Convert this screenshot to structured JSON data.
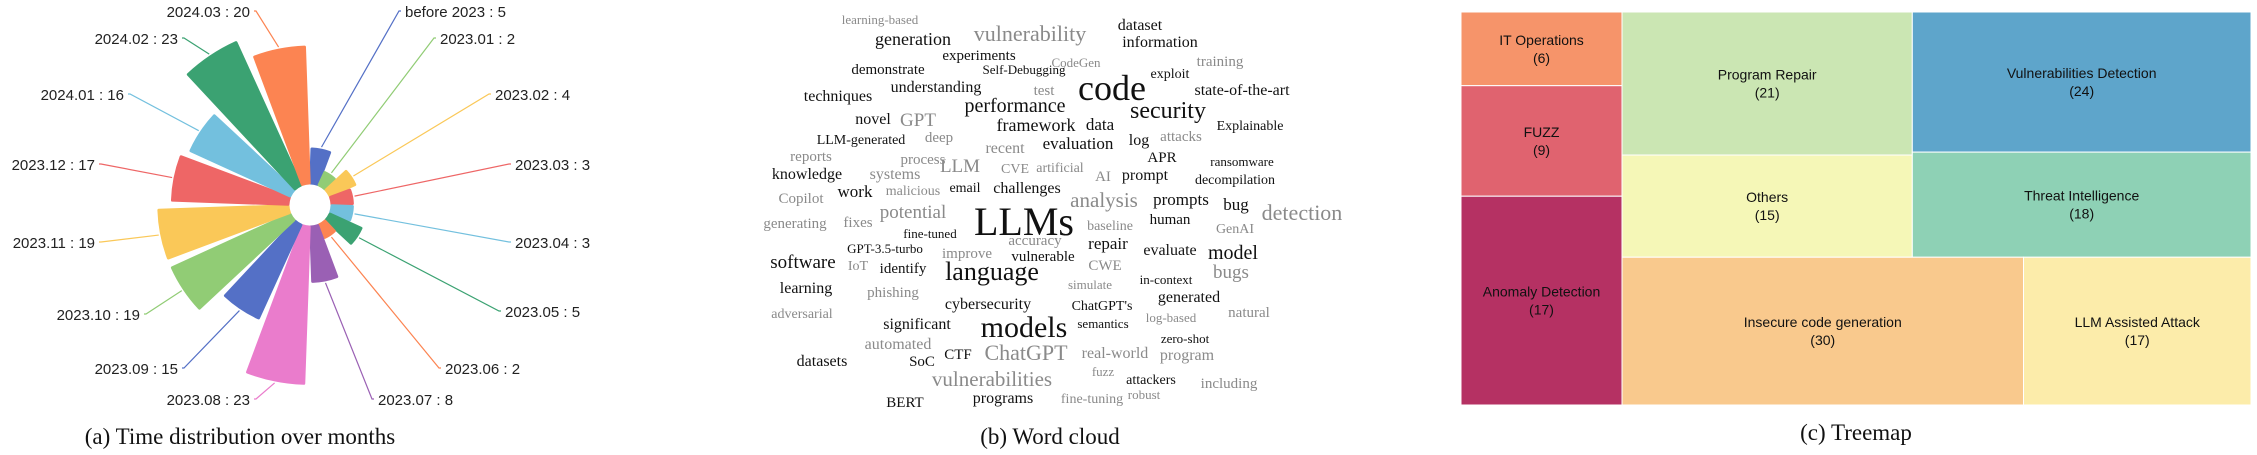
{
  "captions": {
    "a": "(a) Time distribution over months",
    "b": "(b) Word cloud",
    "c": "(c) Treemap"
  },
  "chart_data": [
    {
      "type": "polar-bar",
      "title": "",
      "categories": [
        "before 2023",
        "2023.01",
        "2023.02",
        "2023.03",
        "2023.04",
        "2023.05",
        "2023.06",
        "2023.07",
        "2023.08",
        "2023.09",
        "2023.10",
        "2023.11",
        "2023.12",
        "2024.01",
        "2024.02",
        "2024.03"
      ],
      "values": [
        5,
        2,
        4,
        3,
        3,
        5,
        2,
        8,
        23,
        15,
        19,
        19,
        17,
        16,
        23,
        20
      ],
      "labels": [
        "before 2023 : 5",
        "2023.01 : 2",
        "2023.02 : 4",
        "2023.03 : 3",
        "2023.04 : 3",
        "2023.05 : 5",
        "2023.06 : 2",
        "2023.07 : 8",
        "2023.08 : 23",
        "2023.09 : 15",
        "2023.10 : 19",
        "2023.11 : 19",
        "2023.12 : 17",
        "2024.01 : 16",
        "2024.02 : 23",
        "2024.03 : 20"
      ],
      "colors": [
        "#5470c6",
        "#91cc75",
        "#fac858",
        "#ee6666",
        "#73c0de",
        "#3ba272",
        "#fc8452",
        "#9a60b4",
        "#ea7ccc",
        "#5470c6",
        "#91cc75",
        "#fac858",
        "#ee6666",
        "#73c0de",
        "#3ba272",
        "#fc8452"
      ]
    },
    {
      "type": "wordcloud",
      "words": [
        {
          "text": "learning-based",
          "x": 140,
          "y": 24,
          "s": 13,
          "g": 1
        },
        {
          "text": "vulnerability",
          "x": 290,
          "y": 41,
          "s": 22,
          "g": 1
        },
        {
          "text": "dataset",
          "x": 400,
          "y": 30,
          "s": 16,
          "g": 0
        },
        {
          "text": "generation",
          "x": 173,
          "y": 45,
          "s": 18,
          "g": 0
        },
        {
          "text": "information",
          "x": 420,
          "y": 47,
          "s": 16,
          "g": 0
        },
        {
          "text": "experiments",
          "x": 239,
          "y": 60,
          "s": 15,
          "g": 0
        },
        {
          "text": "CodeGen",
          "x": 336,
          "y": 67,
          "s": 13,
          "g": 1
        },
        {
          "text": "training",
          "x": 480,
          "y": 66,
          "s": 15,
          "g": 1
        },
        {
          "text": "demonstrate",
          "x": 148,
          "y": 74,
          "s": 15,
          "g": 0
        },
        {
          "text": "Self-Debugging",
          "x": 284,
          "y": 74,
          "s": 13,
          "g": 0
        },
        {
          "text": "exploit",
          "x": 430,
          "y": 78,
          "s": 14,
          "g": 0
        },
        {
          "text": "techniques",
          "x": 98,
          "y": 101,
          "s": 16,
          "g": 0
        },
        {
          "text": "understanding",
          "x": 196,
          "y": 92,
          "s": 16,
          "g": 0
        },
        {
          "text": "test",
          "x": 304,
          "y": 95,
          "s": 15,
          "g": 1
        },
        {
          "text": "code",
          "x": 372,
          "y": 100,
          "s": 36,
          "g": 0
        },
        {
          "text": "state-of-the-art",
          "x": 502,
          "y": 95,
          "s": 16,
          "g": 0
        },
        {
          "text": "novel",
          "x": 133,
          "y": 124,
          "s": 16,
          "g": 0
        },
        {
          "text": "GPT",
          "x": 178,
          "y": 126,
          "s": 19,
          "g": 1
        },
        {
          "text": "performance",
          "x": 275,
          "y": 112,
          "s": 20,
          "g": 0
        },
        {
          "text": "security",
          "x": 428,
          "y": 118,
          "s": 24,
          "g": 0
        },
        {
          "text": "Explainable",
          "x": 510,
          "y": 130,
          "s": 14,
          "g": 0
        },
        {
          "text": "LLM-generated",
          "x": 121,
          "y": 144,
          "s": 14,
          "g": 0
        },
        {
          "text": "deep",
          "x": 199,
          "y": 142,
          "s": 15,
          "g": 1
        },
        {
          "text": "framework",
          "x": 296,
          "y": 131,
          "s": 18,
          "g": 0
        },
        {
          "text": "data",
          "x": 360,
          "y": 130,
          "s": 17,
          "g": 0
        },
        {
          "text": "attacks",
          "x": 441,
          "y": 141,
          "s": 15,
          "g": 1
        },
        {
          "text": "reports",
          "x": 71,
          "y": 161,
          "s": 15,
          "g": 1
        },
        {
          "text": "process",
          "x": 183,
          "y": 164,
          "s": 15,
          "g": 1
        },
        {
          "text": "recent",
          "x": 265,
          "y": 153,
          "s": 16,
          "g": 1
        },
        {
          "text": "evaluation",
          "x": 338,
          "y": 149,
          "s": 17,
          "g": 0
        },
        {
          "text": "log",
          "x": 399,
          "y": 145,
          "s": 16,
          "g": 0
        },
        {
          "text": "APR",
          "x": 422,
          "y": 162,
          "s": 15,
          "g": 0
        },
        {
          "text": "ransomware",
          "x": 502,
          "y": 166,
          "s": 13,
          "g": 0
        },
        {
          "text": "knowledge",
          "x": 67,
          "y": 179,
          "s": 16,
          "g": 0
        },
        {
          "text": "systems",
          "x": 155,
          "y": 179,
          "s": 16,
          "g": 1
        },
        {
          "text": "LLM",
          "x": 220,
          "y": 172,
          "s": 19,
          "g": 1
        },
        {
          "text": "CVE",
          "x": 275,
          "y": 173,
          "s": 14,
          "g": 1
        },
        {
          "text": "artificial",
          "x": 320,
          "y": 172,
          "s": 14,
          "g": 1
        },
        {
          "text": "AI",
          "x": 363,
          "y": 181,
          "s": 15,
          "g": 1
        },
        {
          "text": "prompt",
          "x": 405,
          "y": 180,
          "s": 16,
          "g": 0
        },
        {
          "text": "decompilation",
          "x": 495,
          "y": 184,
          "s": 14,
          "g": 0
        },
        {
          "text": "Copilot",
          "x": 61,
          "y": 203,
          "s": 15,
          "g": 1
        },
        {
          "text": "work",
          "x": 115,
          "y": 197,
          "s": 17,
          "g": 0
        },
        {
          "text": "malicious",
          "x": 173,
          "y": 195,
          "s": 14,
          "g": 1
        },
        {
          "text": "email",
          "x": 225,
          "y": 192,
          "s": 14,
          "g": 0
        },
        {
          "text": "challenges",
          "x": 287,
          "y": 193,
          "s": 16,
          "g": 0
        },
        {
          "text": "analysis",
          "x": 364,
          "y": 207,
          "s": 21,
          "g": 1
        },
        {
          "text": "prompts",
          "x": 441,
          "y": 205,
          "s": 17,
          "g": 0
        },
        {
          "text": "bug",
          "x": 496,
          "y": 210,
          "s": 17,
          "g": 0
        },
        {
          "text": "potential",
          "x": 173,
          "y": 218,
          "s": 19,
          "g": 1
        },
        {
          "text": "LLMs",
          "x": 284,
          "y": 235,
          "s": 40,
          "g": 0
        },
        {
          "text": "detection",
          "x": 562,
          "y": 220,
          "s": 22,
          "g": 1
        },
        {
          "text": "generating",
          "x": 55,
          "y": 228,
          "s": 15,
          "g": 1
        },
        {
          "text": "fixes",
          "x": 118,
          "y": 227,
          "s": 15,
          "g": 1
        },
        {
          "text": "baseline",
          "x": 370,
          "y": 230,
          "s": 14,
          "g": 1
        },
        {
          "text": "human",
          "x": 430,
          "y": 224,
          "s": 15,
          "g": 0
        },
        {
          "text": "GenAI",
          "x": 495,
          "y": 233,
          "s": 14,
          "g": 1
        },
        {
          "text": "fine-tuned",
          "x": 190,
          "y": 238,
          "s": 13,
          "g": 0
        },
        {
          "text": "accuracy",
          "x": 295,
          "y": 245,
          "s": 15,
          "g": 1
        },
        {
          "text": "repair",
          "x": 368,
          "y": 249,
          "s": 17,
          "g": 0
        },
        {
          "text": "GPT-3.5-turbo",
          "x": 145,
          "y": 253,
          "s": 13,
          "g": 0
        },
        {
          "text": "improve",
          "x": 227,
          "y": 258,
          "s": 15,
          "g": 1
        },
        {
          "text": "vulnerable",
          "x": 303,
          "y": 261,
          "s": 15,
          "g": 0
        },
        {
          "text": "evaluate",
          "x": 430,
          "y": 255,
          "s": 16,
          "g": 0
        },
        {
          "text": "model",
          "x": 493,
          "y": 259,
          "s": 20,
          "g": 0
        },
        {
          "text": "software",
          "x": 63,
          "y": 268,
          "s": 19,
          "g": 0
        },
        {
          "text": "IoT",
          "x": 118,
          "y": 270,
          "s": 14,
          "g": 1
        },
        {
          "text": "identify",
          "x": 163,
          "y": 273,
          "s": 15,
          "g": 0
        },
        {
          "text": "language",
          "x": 252,
          "y": 280,
          "s": 26,
          "g": 0
        },
        {
          "text": "CWE",
          "x": 365,
          "y": 270,
          "s": 15,
          "g": 1
        },
        {
          "text": "bugs",
          "x": 491,
          "y": 278,
          "s": 19,
          "g": 1
        },
        {
          "text": "in-context",
          "x": 426,
          "y": 284,
          "s": 13,
          "g": 0
        },
        {
          "text": "learning",
          "x": 66,
          "y": 293,
          "s": 16,
          "g": 0
        },
        {
          "text": "phishing",
          "x": 153,
          "y": 297,
          "s": 15,
          "g": 1
        },
        {
          "text": "simulate",
          "x": 350,
          "y": 289,
          "s": 13,
          "g": 1
        },
        {
          "text": "generated",
          "x": 449,
          "y": 302,
          "s": 16,
          "g": 0
        },
        {
          "text": "cybersecurity",
          "x": 248,
          "y": 309,
          "s": 16,
          "g": 0
        },
        {
          "text": "ChatGPT's",
          "x": 362,
          "y": 310,
          "s": 14,
          "g": 0
        },
        {
          "text": "adversarial",
          "x": 62,
          "y": 318,
          "s": 14,
          "g": 1
        },
        {
          "text": "significant",
          "x": 177,
          "y": 329,
          "s": 16,
          "g": 0
        },
        {
          "text": "models",
          "x": 284,
          "y": 337,
          "s": 30,
          "g": 0
        },
        {
          "text": "semantics",
          "x": 363,
          "y": 328,
          "s": 13,
          "g": 0
        },
        {
          "text": "log-based",
          "x": 431,
          "y": 322,
          "s": 13,
          "g": 1
        },
        {
          "text": "natural",
          "x": 509,
          "y": 317,
          "s": 15,
          "g": 1
        },
        {
          "text": "automated",
          "x": 158,
          "y": 349,
          "s": 16,
          "g": 1
        },
        {
          "text": "zero-shot",
          "x": 445,
          "y": 343,
          "s": 13,
          "g": 0
        },
        {
          "text": "datasets",
          "x": 82,
          "y": 366,
          "s": 16,
          "g": 0
        },
        {
          "text": "SoC",
          "x": 182,
          "y": 366,
          "s": 15,
          "g": 0
        },
        {
          "text": "CTF",
          "x": 218,
          "y": 359,
          "s": 15,
          "g": 0
        },
        {
          "text": "ChatGPT",
          "x": 286,
          "y": 360,
          "s": 22,
          "g": 1
        },
        {
          "text": "real-world",
          "x": 375,
          "y": 358,
          "s": 16,
          "g": 1
        },
        {
          "text": "program",
          "x": 447,
          "y": 360,
          "s": 16,
          "g": 1
        },
        {
          "text": "vulnerabilities",
          "x": 252,
          "y": 386,
          "s": 21,
          "g": 1
        },
        {
          "text": "fuzz",
          "x": 363,
          "y": 376,
          "s": 13,
          "g": 1
        },
        {
          "text": "attackers",
          "x": 411,
          "y": 384,
          "s": 14,
          "g": 0
        },
        {
          "text": "including",
          "x": 489,
          "y": 388,
          "s": 15,
          "g": 1
        },
        {
          "text": "BERT",
          "x": 165,
          "y": 407,
          "s": 15,
          "g": 0
        },
        {
          "text": "programs",
          "x": 263,
          "y": 403,
          "s": 16,
          "g": 0
        },
        {
          "text": "fine-tuning",
          "x": 352,
          "y": 403,
          "s": 14,
          "g": 1
        },
        {
          "text": "robust",
          "x": 404,
          "y": 399,
          "s": 13,
          "g": 1
        }
      ]
    },
    {
      "type": "treemap",
      "items": [
        {
          "name": "IT Operations",
          "value": 6,
          "color": "#f6946a"
        },
        {
          "name": "FUZZ",
          "value": 9,
          "color": "#e0636f"
        },
        {
          "name": "Anomaly Detection",
          "value": 17,
          "color": "#b53163"
        },
        {
          "name": "Program Repair",
          "value": 21,
          "color": "#cbe6b3"
        },
        {
          "name": "Others",
          "value": 15,
          "color": "#f5f7b7"
        },
        {
          "name": "Vulnerabilities Detection",
          "value": 24,
          "color": "#5ea5cb"
        },
        {
          "name": "Threat Intelligence",
          "value": 18,
          "color": "#8ed1b5"
        },
        {
          "name": "Insecure code generation",
          "value": 30,
          "color": "#f9c98d"
        },
        {
          "name": "LLM Assisted Attack",
          "value": 17,
          "color": "#fcecaa"
        }
      ]
    }
  ]
}
